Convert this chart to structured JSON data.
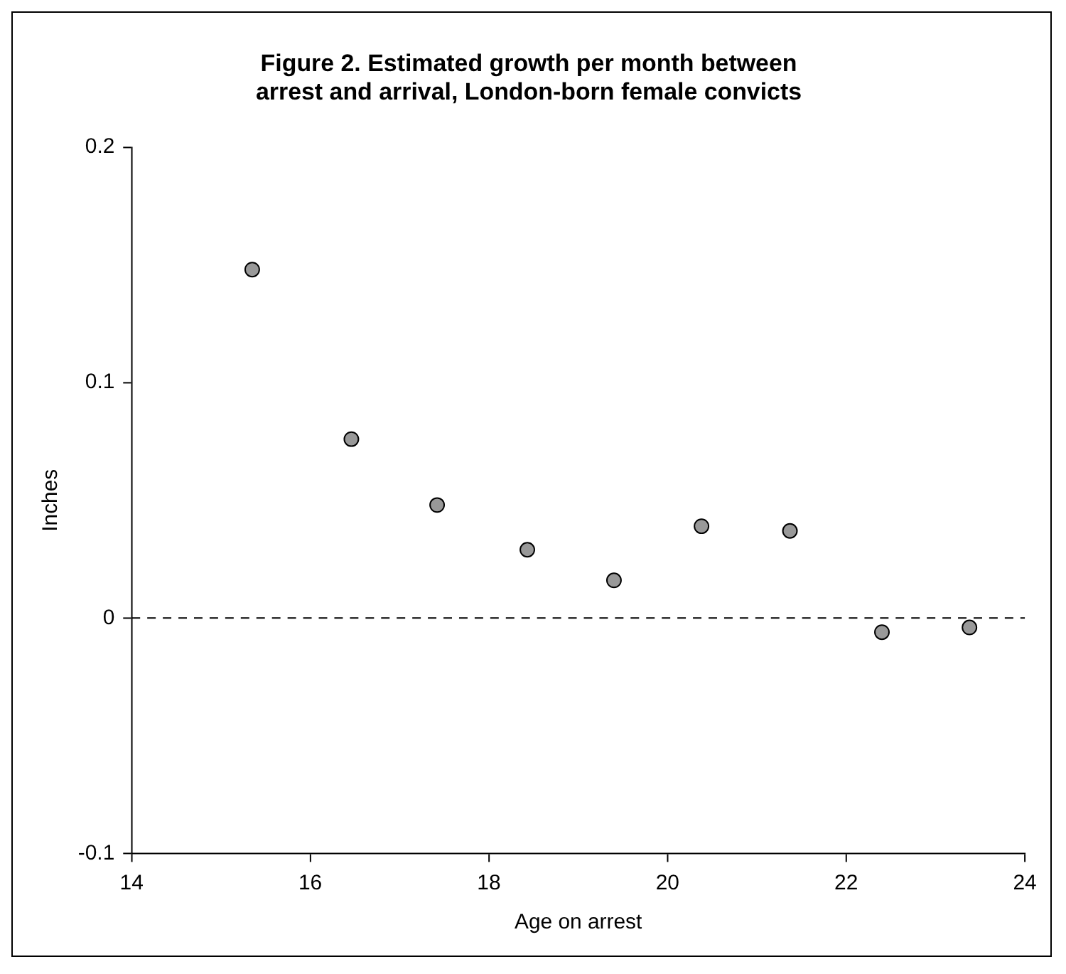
{
  "chart_data": {
    "type": "scatter",
    "title": "Figure 2. Estimated growth per month between arrest and arrival, London-born female convicts",
    "xlabel": "Age on arrest",
    "ylabel": "Inches",
    "x": [
      15.35,
      16.46,
      17.42,
      18.43,
      19.4,
      20.38,
      21.37,
      22.4,
      23.38
    ],
    "values": [
      0.148,
      0.076,
      0.048,
      0.029,
      0.016,
      0.039,
      0.037,
      -0.006,
      -0.004
    ],
    "color": "#999999",
    "marker": "circle",
    "grid": false,
    "legend": false,
    "xlim": [
      14,
      24
    ],
    "xticks": [
      14,
      16,
      18,
      20,
      22,
      24
    ],
    "ylim": [
      -0.1,
      0.2
    ],
    "yticks": [
      -0.1,
      0,
      0.1,
      0.2
    ],
    "ref_lines": [
      {
        "axis": "y",
        "value": 0,
        "color": "#000000",
        "line_style": "dashed"
      }
    ]
  }
}
